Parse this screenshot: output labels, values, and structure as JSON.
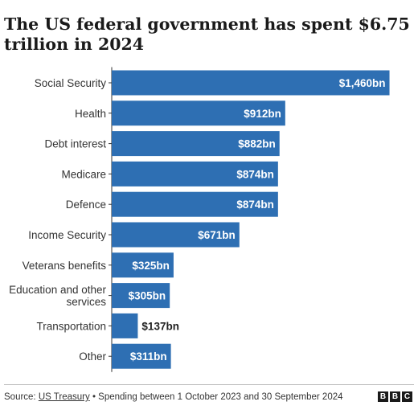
{
  "chart_data": {
    "type": "bar",
    "orientation": "horizontal",
    "title": "The US federal government has spent $6.75 trillion in 2024",
    "categories": [
      "Social Security",
      "Health",
      "Debt interest",
      "Medicare",
      "Defence",
      "Income Security",
      "Veterans benefits",
      "Education and other services",
      "Transportation",
      "Other"
    ],
    "values": [
      1460,
      912,
      882,
      874,
      874,
      671,
      325,
      305,
      137,
      311
    ],
    "value_labels": [
      "$1,460bn",
      "$912bn",
      "$882bn",
      "$874bn",
      "$874bn",
      "$671bn",
      "$325bn",
      "$305bn",
      "$137bn",
      "$311bn"
    ],
    "unit": "bn",
    "xlim": [
      0,
      1500
    ],
    "bar_color": "#2e6fb3",
    "grid": false,
    "legend": "none"
  },
  "footer": {
    "source_prefix": "Source: ",
    "source_name": "US Treasury",
    "source_suffix": " • Spending between 1 October 2023 and 30 September 2024",
    "logo_letters": [
      "B",
      "B",
      "C"
    ]
  }
}
